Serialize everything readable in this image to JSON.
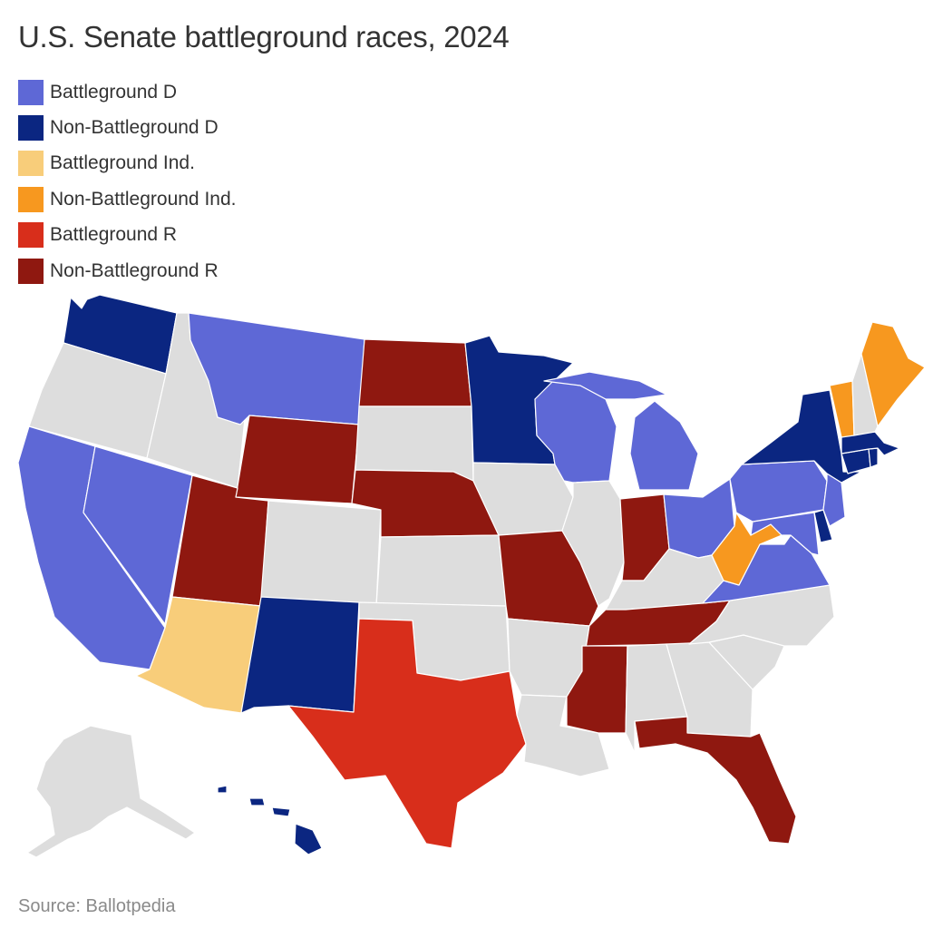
{
  "title": "U.S. Senate battleground races, 2024",
  "legend": [
    {
      "label": "Battleground D",
      "category": "bg_d"
    },
    {
      "label": "Non-Battleground D",
      "category": "nbg_d"
    },
    {
      "label": "Battleground Ind.",
      "category": "bg_i"
    },
    {
      "label": "Non-Battleground Ind.",
      "category": "nbg_i"
    },
    {
      "label": "Battleground R",
      "category": "bg_r"
    },
    {
      "label": "Non-Battleground R",
      "category": "nbg_r"
    }
  ],
  "colors": {
    "bg_d": "#5e68d6",
    "nbg_d": "#0b2681",
    "bg_i": "#f8cd7a",
    "nbg_i": "#f7981f",
    "bg_r": "#d82e1b",
    "nbg_r": "#8f1810",
    "none": "#dddddd"
  },
  "states": {
    "WA": "nbg_d",
    "OR": "none",
    "CA": "bg_d",
    "NV": "bg_d",
    "ID": "none",
    "MT": "bg_d",
    "WY": "nbg_r",
    "UT": "nbg_r",
    "AZ": "bg_i",
    "CO": "none",
    "NM": "nbg_d",
    "ND": "nbg_r",
    "SD": "none",
    "NE": "nbg_r",
    "KS": "none",
    "OK": "none",
    "TX": "bg_r",
    "MN": "nbg_d",
    "IA": "none",
    "MO": "nbg_r",
    "AR": "none",
    "LA": "none",
    "WI": "bg_d",
    "IL": "none",
    "MI": "bg_d",
    "IN": "nbg_r",
    "OH": "bg_d",
    "KY": "none",
    "TN": "nbg_r",
    "MS": "nbg_r",
    "AL": "none",
    "GA": "none",
    "FL": "nbg_r",
    "SC": "none",
    "NC": "none",
    "VA": "bg_d",
    "WV": "nbg_i",
    "MD": "bg_d",
    "DE": "nbg_d",
    "PA": "bg_d",
    "NJ": "bg_d",
    "NY": "nbg_d",
    "CT": "nbg_d",
    "RI": "nbg_d",
    "MA": "nbg_d",
    "VT": "nbg_i",
    "NH": "none",
    "ME": "nbg_i",
    "AK": "none",
    "HI": "nbg_d"
  },
  "source": "Source: Ballotpedia"
}
